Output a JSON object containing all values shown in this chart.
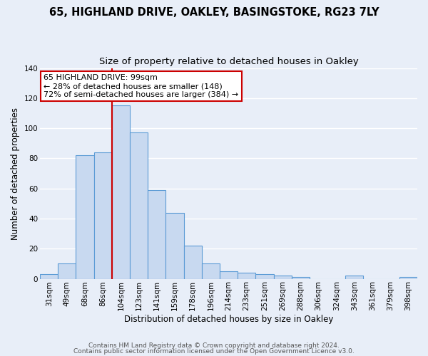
{
  "title": "65, HIGHLAND DRIVE, OAKLEY, BASINGSTOKE, RG23 7LY",
  "subtitle": "Size of property relative to detached houses in Oakley",
  "xlabel": "Distribution of detached houses by size in Oakley",
  "ylabel": "Number of detached properties",
  "bar_labels": [
    "31sqm",
    "49sqm",
    "68sqm",
    "86sqm",
    "104sqm",
    "123sqm",
    "141sqm",
    "159sqm",
    "178sqm",
    "196sqm",
    "214sqm",
    "233sqm",
    "251sqm",
    "269sqm",
    "288sqm",
    "306sqm",
    "324sqm",
    "343sqm",
    "361sqm",
    "379sqm",
    "398sqm"
  ],
  "bar_values": [
    3,
    10,
    82,
    84,
    115,
    97,
    59,
    44,
    22,
    10,
    5,
    4,
    3,
    2,
    1,
    0,
    0,
    2,
    0,
    0,
    1
  ],
  "bar_color": "#c8d9f0",
  "bar_edge_color": "#5b9bd5",
  "ylim": [
    0,
    140
  ],
  "yticks": [
    0,
    20,
    40,
    60,
    80,
    100,
    120,
    140
  ],
  "red_line_index": 4,
  "annotation_title": "65 HIGHLAND DRIVE: 99sqm",
  "annotation_line1": "← 28% of detached houses are smaller (148)",
  "annotation_line2": "72% of semi-detached houses are larger (384) →",
  "annotation_box_color": "#ffffff",
  "annotation_box_edge": "#cc0000",
  "footer_line1": "Contains HM Land Registry data © Crown copyright and database right 2024.",
  "footer_line2": "Contains public sector information licensed under the Open Government Licence v3.0.",
  "bg_color": "#e8eef8",
  "plot_bg_color": "#e8eef8",
  "grid_color": "#ffffff",
  "title_fontsize": 10.5,
  "subtitle_fontsize": 9.5,
  "axis_fontsize": 8.5,
  "tick_fontsize": 7.5,
  "footer_fontsize": 6.5
}
